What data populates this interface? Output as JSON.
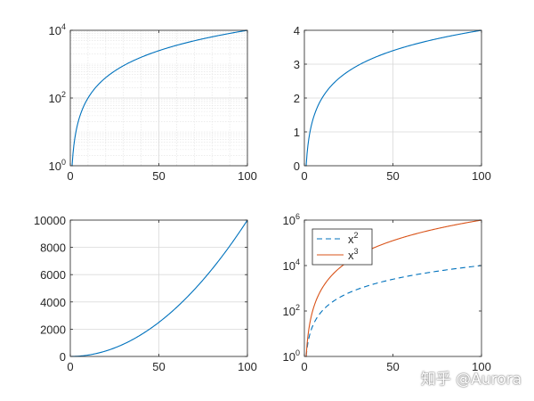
{
  "colors": {
    "blue": "#0072BD",
    "orange": "#D95319",
    "axis": "#262626",
    "grid": "#d9d9d9",
    "minorgrid": "#e2e2e2"
  },
  "watermark": "知乎 @Aurora",
  "chart_data": [
    {
      "type": "line",
      "function": "x^2",
      "x": [
        0,
        1,
        2,
        5,
        10,
        20,
        30,
        40,
        50,
        60,
        70,
        80,
        90,
        100
      ],
      "y": [
        0,
        1,
        4,
        25,
        100,
        400,
        900,
        1600,
        2500,
        3600,
        4900,
        6400,
        8100,
        10000
      ],
      "xlim": [
        0,
        100
      ],
      "ylim": [
        1,
        10000
      ],
      "yscale": "log",
      "grid": "on",
      "minor_grid": "on",
      "xticks": [
        0,
        50,
        100
      ],
      "yticks": [
        {
          "base": "10",
          "exp": "0",
          "value": 1
        },
        {
          "base": "10",
          "exp": "2",
          "value": 100
        },
        {
          "base": "10",
          "exp": "4",
          "value": 10000
        }
      ],
      "series": [
        {
          "color": "#0072BD",
          "style": "solid"
        }
      ]
    },
    {
      "type": "line",
      "function": "log10(x^2)",
      "x": [
        1,
        2,
        5,
        10,
        20,
        30,
        40,
        50,
        60,
        70,
        80,
        90,
        100
      ],
      "y": [
        0,
        0.602,
        1.398,
        2,
        2.602,
        2.954,
        3.204,
        3.398,
        3.556,
        3.69,
        3.806,
        3.908,
        4
      ],
      "xlim": [
        0,
        100
      ],
      "ylim": [
        0,
        4
      ],
      "yscale": "linear",
      "grid": "on",
      "xticks": [
        0,
        50,
        100
      ],
      "yticks": [
        0,
        1,
        2,
        3,
        4
      ],
      "series": [
        {
          "color": "#0072BD",
          "style": "solid"
        }
      ]
    },
    {
      "type": "line",
      "function": "x^2",
      "x": [
        0,
        10,
        20,
        30,
        40,
        50,
        60,
        70,
        80,
        90,
        100
      ],
      "y": [
        0,
        100,
        400,
        900,
        1600,
        2500,
        3600,
        4900,
        6400,
        8100,
        10000
      ],
      "xlim": [
        0,
        100
      ],
      "ylim": [
        0,
        10000
      ],
      "yscale": "linear",
      "grid": "on",
      "xticks": [
        0,
        50,
        100
      ],
      "yticks": [
        0,
        2000,
        4000,
        6000,
        8000,
        10000
      ],
      "series": [
        {
          "color": "#0072BD",
          "style": "solid"
        }
      ]
    },
    {
      "type": "line",
      "functions": [
        "x^2",
        "x^3"
      ],
      "x": [
        1,
        2,
        5,
        10,
        20,
        30,
        40,
        50,
        60,
        70,
        80,
        90,
        100
      ],
      "xlim": [
        0,
        100
      ],
      "ylim": [
        1,
        1000000
      ],
      "yscale": "log",
      "grid": "off",
      "xticks": [
        0,
        50,
        100
      ],
      "yticks": [
        {
          "base": "10",
          "exp": "0",
          "value": 1
        },
        {
          "base": "10",
          "exp": "2",
          "value": 100
        },
        {
          "base": "10",
          "exp": "4",
          "value": 10000
        },
        {
          "base": "10",
          "exp": "6",
          "value": 1000000
        }
      ],
      "legend_position": "top-left",
      "series": [
        {
          "name_base": "x",
          "name_exp": "2",
          "color": "#0072BD",
          "style": "dashed",
          "values": [
            1,
            4,
            25,
            100,
            400,
            900,
            1600,
            2500,
            3600,
            4900,
            6400,
            8100,
            10000
          ]
        },
        {
          "name_base": "x",
          "name_exp": "3",
          "color": "#D95319",
          "style": "solid",
          "values": [
            1,
            8,
            125,
            1000,
            8000,
            27000,
            64000,
            125000,
            216000,
            343000,
            512000,
            729000,
            1000000
          ]
        }
      ]
    }
  ]
}
